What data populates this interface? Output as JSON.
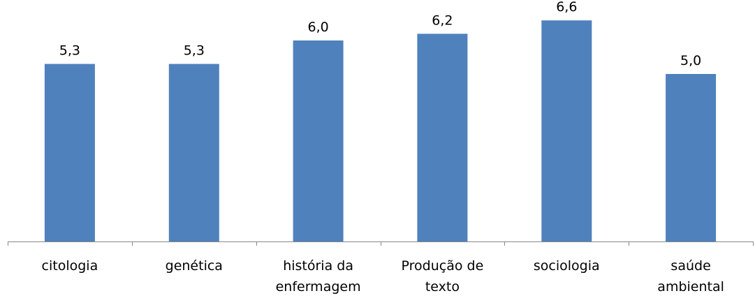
{
  "chart_data": {
    "type": "bar",
    "categories": [
      [
        "citologia"
      ],
      [
        "genética"
      ],
      [
        "história da",
        "enfermagem"
      ],
      [
        "Produção de",
        "texto"
      ],
      [
        "sociologia"
      ],
      [
        "saúde",
        "ambiental"
      ]
    ],
    "values": [
      5.3,
      5.3,
      6.0,
      6.2,
      6.6,
      5.0
    ],
    "data_labels": [
      "5,3",
      "5,3",
      "6,0",
      "6,2",
      "6,6",
      "5,0"
    ],
    "ylim": [
      0,
      7
    ],
    "grid": false,
    "legend": "none",
    "bar_color": "#4F81BD",
    "axis_color": "#868686"
  }
}
